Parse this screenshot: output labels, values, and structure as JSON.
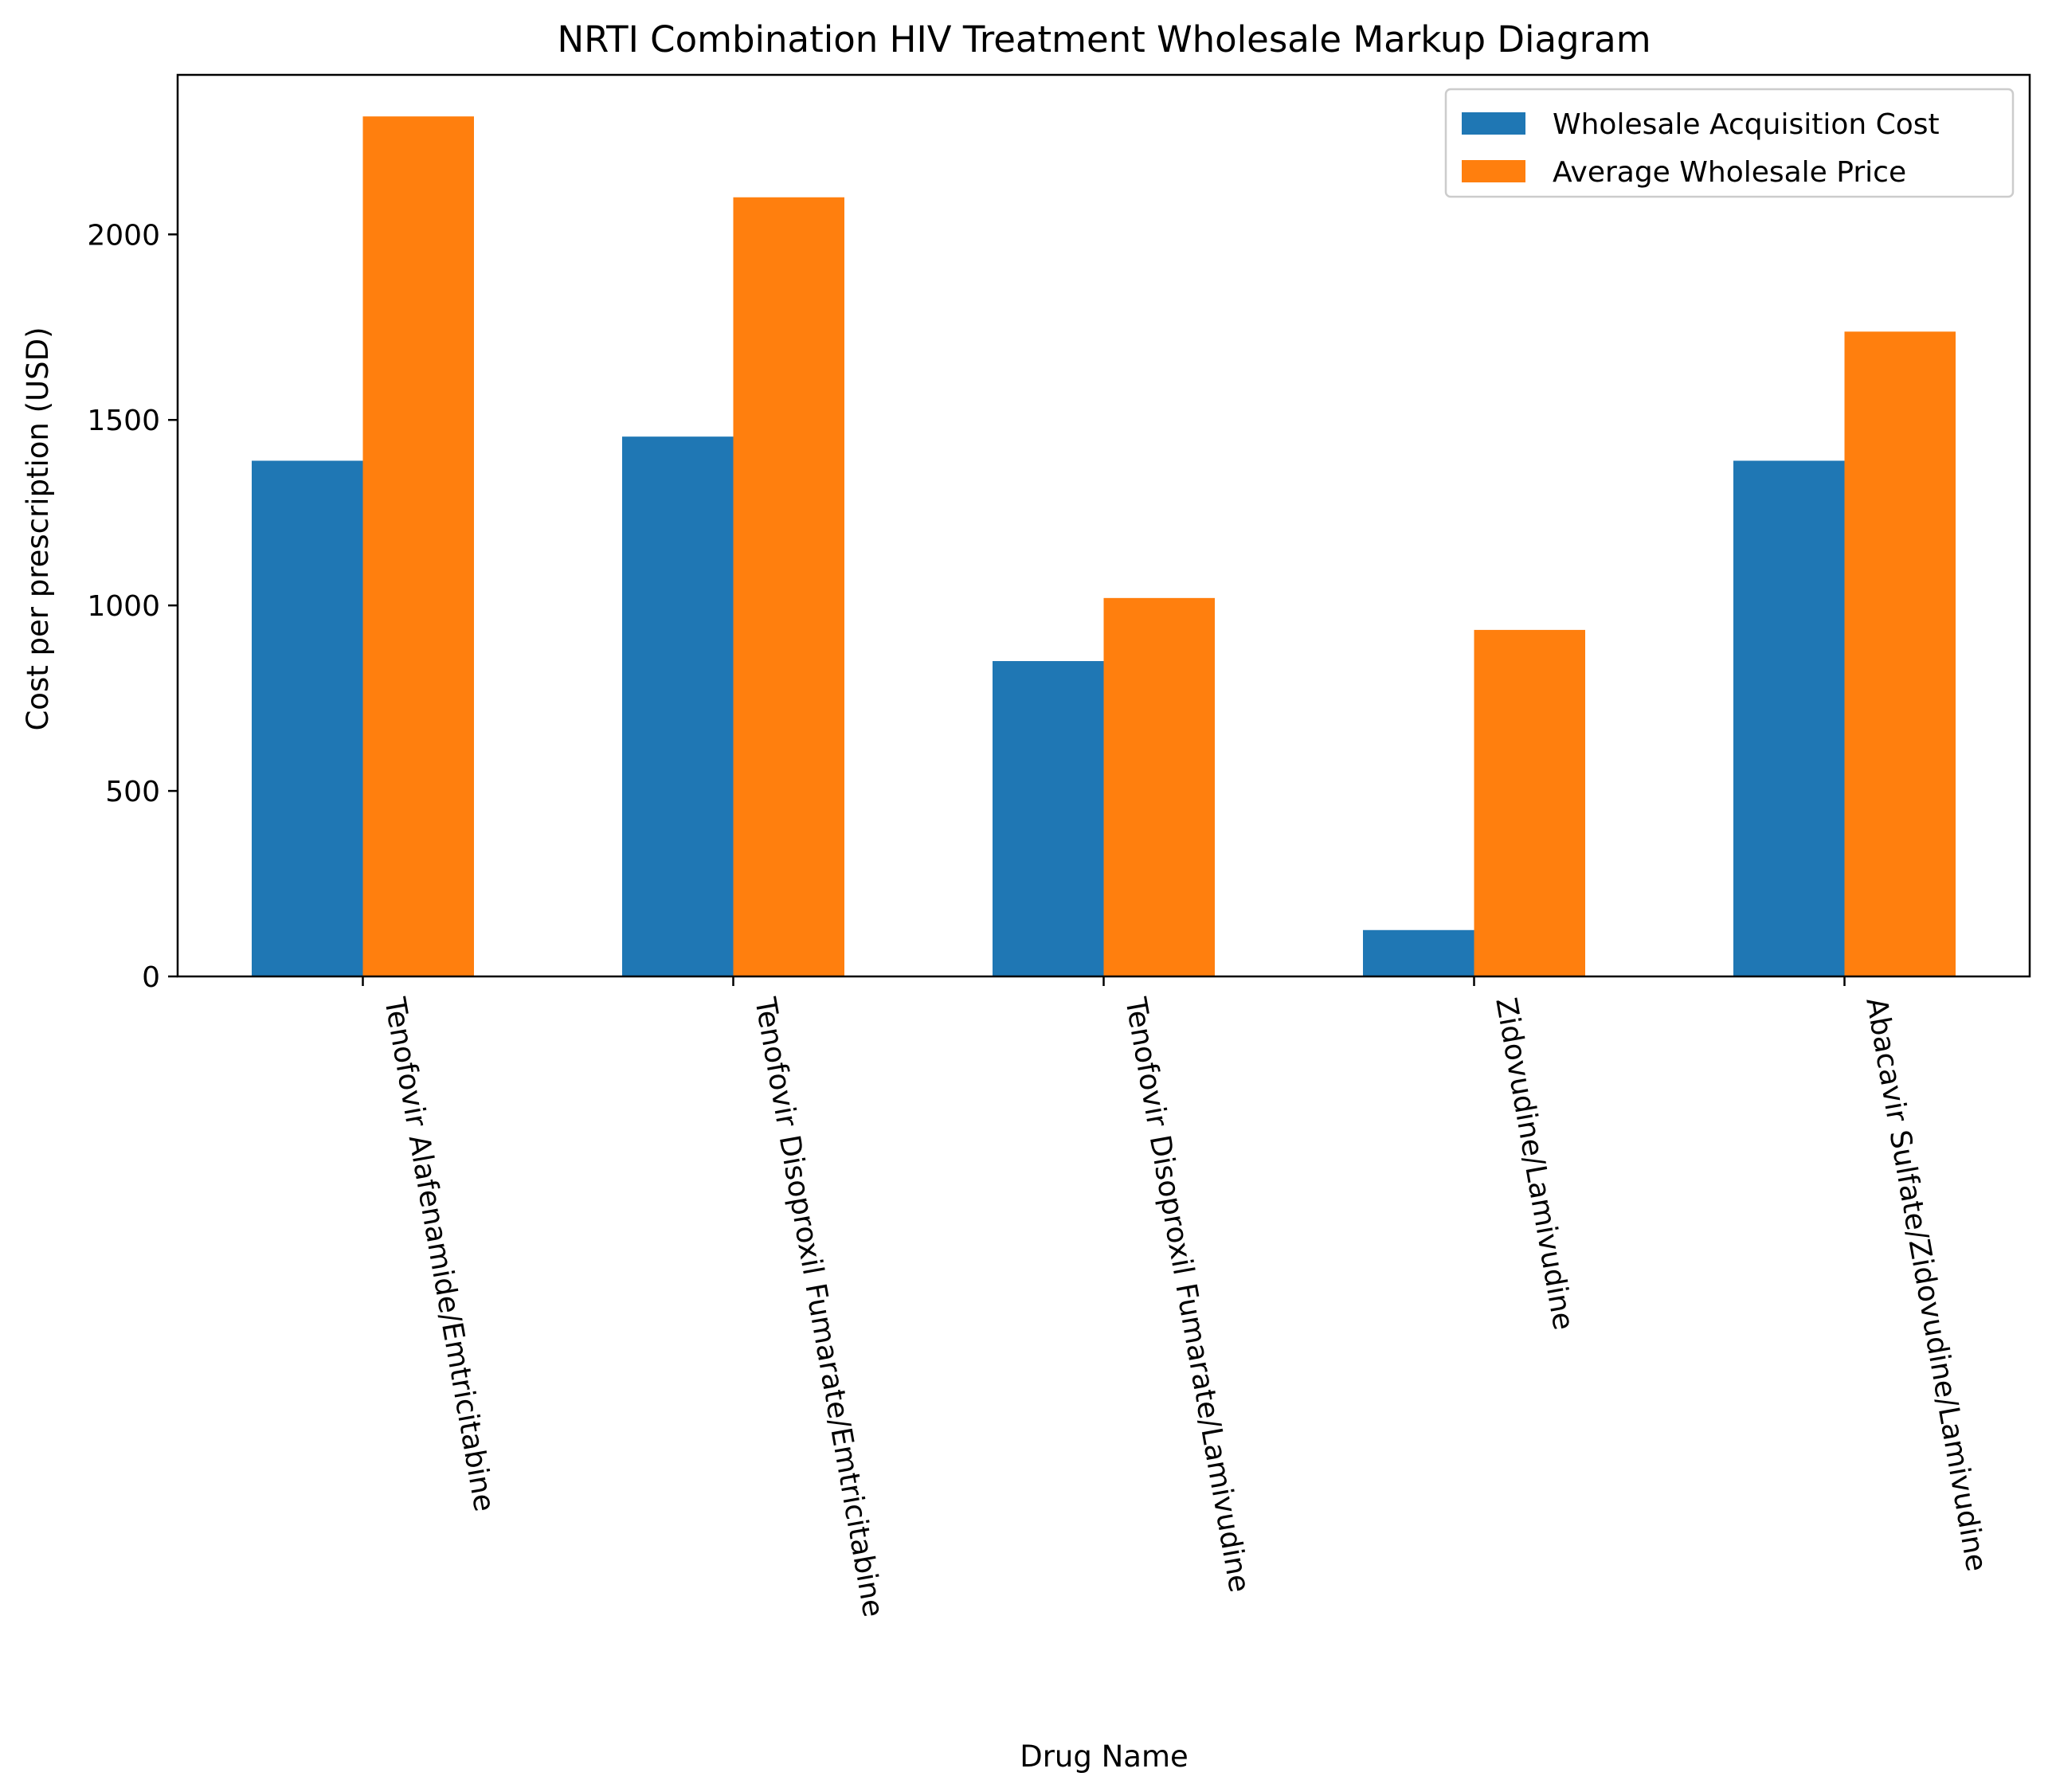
{
  "chart_data": {
    "type": "bar",
    "title": "NRTI Combination HIV Treatment Wholesale Markup Diagram",
    "xlabel": "Drug Name",
    "ylabel": "Cost per prescription (USD)",
    "categories": [
      "Tenofovir Alafenamide/Emtricitabine",
      "Tenofovir Disoproxil Fumarate/Emtricitabine",
      "Tenofovir Disoproxil Fumarate/Lamivudine",
      "Zidovudine/Lamivudine",
      "Abacavir Sulfate/Zidovudine/Lamivudine"
    ],
    "series": [
      {
        "name": "Wholesale Acquisition Cost",
        "color": "#1f77b4",
        "values": [
          1390,
          1455,
          850,
          125,
          1390
        ]
      },
      {
        "name": "Average Wholesale Price",
        "color": "#ff7f0e",
        "values": [
          2318,
          2100,
          1020,
          934,
          1738
        ]
      }
    ],
    "ylim": [
      0,
      2430
    ],
    "yticks": [
      0,
      500,
      1000,
      1500,
      2000
    ],
    "legend_position": "upper right",
    "grid": false
  }
}
